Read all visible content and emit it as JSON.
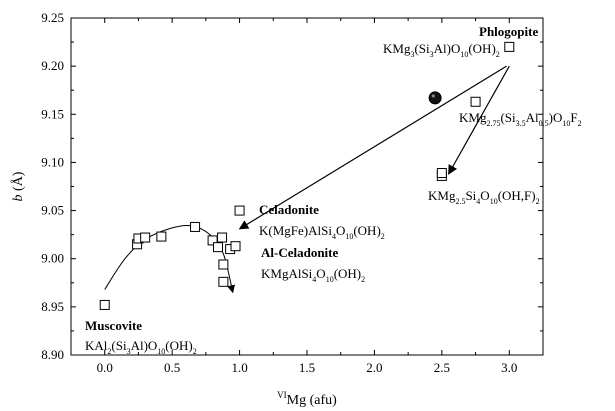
{
  "chart_data": {
    "type": "scatter",
    "xlabel": {
      "sup": "VI",
      "main": "Mg (afu)"
    },
    "ylabel": {
      "italic": "b",
      "unit": " (Å)"
    },
    "xlim": [
      -0.25,
      3.25
    ],
    "ylim": [
      8.9,
      9.25
    ],
    "x_ticks": [
      "0.0",
      "0.5",
      "1.0",
      "1.5",
      "2.0",
      "2.5",
      "3.0"
    ],
    "y_ticks": [
      "8.90",
      "8.95",
      "9.00",
      "9.05",
      "9.10",
      "9.15",
      "9.20",
      "9.25"
    ],
    "series": [
      {
        "marker": "open-square",
        "points": [
          [
            0.0,
            8.952
          ],
          [
            0.24,
            9.015
          ],
          [
            0.25,
            9.021
          ],
          [
            0.3,
            9.022
          ],
          [
            0.42,
            9.023
          ],
          [
            0.67,
            9.033
          ],
          [
            0.8,
            9.019
          ],
          [
            0.84,
            9.012
          ],
          [
            0.87,
            9.022
          ],
          [
            0.88,
            8.994
          ],
          [
            0.88,
            8.976
          ],
          [
            0.93,
            9.01
          ],
          [
            0.97,
            9.013
          ],
          [
            1.0,
            9.05
          ],
          [
            2.5,
            9.086
          ],
          [
            2.5,
            9.089
          ],
          [
            2.75,
            9.163
          ],
          [
            3.0,
            9.22
          ]
        ]
      },
      {
        "marker": "filled-circle",
        "points": [
          [
            2.45,
            9.167
          ]
        ]
      }
    ],
    "curve": [
      [
        0.0,
        8.968
      ],
      [
        0.15,
        9.0
      ],
      [
        0.3,
        9.02
      ],
      [
        0.5,
        9.032
      ],
      [
        0.65,
        9.034
      ],
      [
        0.78,
        9.025
      ],
      [
        0.88,
        9.005
      ],
      [
        0.95,
        8.965
      ]
    ],
    "arrows": [
      {
        "from": [
          2.98,
          9.2
        ],
        "to": [
          1.0,
          9.031
        ]
      },
      {
        "from": [
          3.0,
          9.2
        ],
        "to": [
          2.55,
          9.088
        ]
      }
    ],
    "annotations": [
      {
        "key": "phlogopite",
        "name": "Phlogopite",
        "formula": [
          [
            "KMg",
            ""
          ],
          [
            "3",
            "sub"
          ],
          [
            "(Si",
            ""
          ],
          [
            "3",
            "sub"
          ],
          [
            "Al)O",
            ""
          ],
          [
            "10",
            "sub"
          ],
          [
            "(OH)",
            ""
          ],
          [
            "2",
            "sub"
          ]
        ]
      },
      {
        "key": "fluor-phlogopite",
        "name": "",
        "formula": [
          [
            "KMg",
            ""
          ],
          [
            "2.75",
            "sub"
          ],
          [
            "(Si",
            ""
          ],
          [
            "3.5",
            "sub"
          ],
          [
            "Al",
            ""
          ],
          [
            "0.5",
            "sub"
          ],
          [
            ")O",
            ""
          ],
          [
            "10",
            "sub"
          ],
          [
            "F",
            ""
          ],
          [
            "2",
            "sub"
          ]
        ]
      },
      {
        "key": "tetrasilicic",
        "name": "",
        "formula": [
          [
            "KMg",
            ""
          ],
          [
            "2.5",
            "sub"
          ],
          [
            "Si",
            ""
          ],
          [
            "4",
            "sub"
          ],
          [
            "O",
            ""
          ],
          [
            "10",
            "sub"
          ],
          [
            "(OH,F)",
            ""
          ],
          [
            "2",
            "sub"
          ]
        ]
      },
      {
        "key": "celadonite",
        "name": "Celadonite",
        "formula": [
          [
            "K(MgFe)AlSi",
            ""
          ],
          [
            "4",
            "sub"
          ],
          [
            "O",
            ""
          ],
          [
            "10",
            "sub"
          ],
          [
            "(OH)",
            ""
          ],
          [
            "2",
            "sub"
          ]
        ]
      },
      {
        "key": "al-celadonite",
        "name": "Al-Celadonite",
        "formula": [
          [
            "KMgAlSi",
            ""
          ],
          [
            "4",
            "sub"
          ],
          [
            "O",
            ""
          ],
          [
            "10",
            "sub"
          ],
          [
            "(OH)",
            ""
          ],
          [
            "2",
            "sub"
          ]
        ]
      },
      {
        "key": "muscovite",
        "name": "Muscovite",
        "formula": [
          [
            "KAl",
            ""
          ],
          [
            "2",
            "sub"
          ],
          [
            "(Si",
            ""
          ],
          [
            "3",
            "sub"
          ],
          [
            "Al)O",
            ""
          ],
          [
            "10",
            "sub"
          ],
          [
            "(OH)",
            ""
          ],
          [
            "2",
            "sub"
          ]
        ]
      }
    ]
  }
}
